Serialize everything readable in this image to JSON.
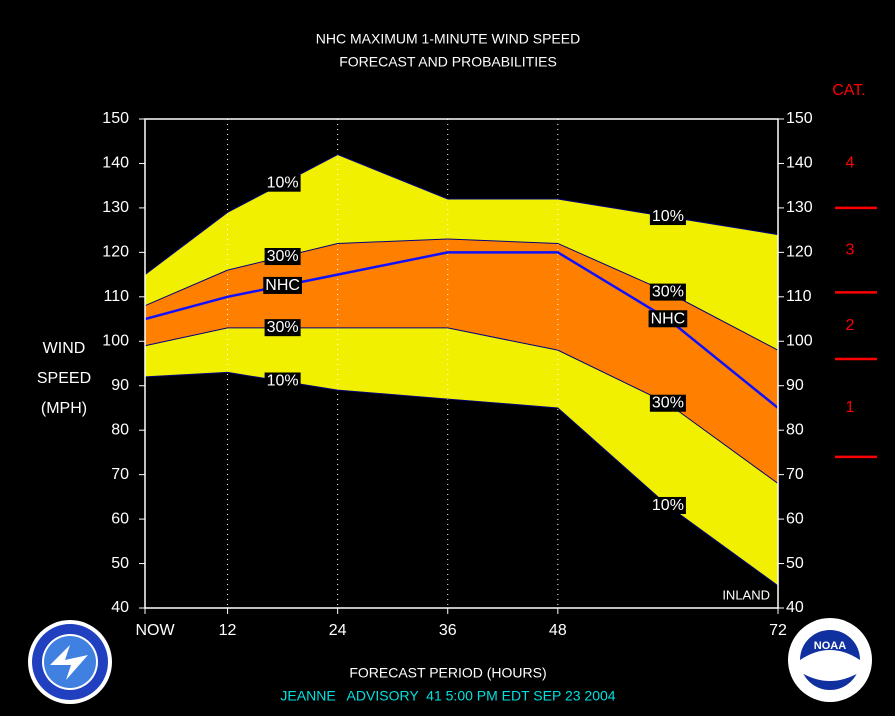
{
  "chart_data": {
    "type": "band_line",
    "title_lines": [
      "NHC MAXIMUM 1-MINUTE WIND SPEED",
      "FORECAST AND PROBABILITIES"
    ],
    "y_label_lines": [
      "WIND",
      "SPEED",
      "(MPH)"
    ],
    "x_label": "FORECAST PERIOD (HOURS)",
    "footer": "JEANNE   ADVISORY  41 5:00 PM EDT SEP 23 2004",
    "footer_color": "#00e0e0",
    "annotation": "INLAND",
    "x": [
      3,
      12,
      24,
      36,
      48,
      60,
      72
    ],
    "series": [
      {
        "name": "10%",
        "color": "#000080",
        "values": [
          115,
          129,
          142,
          132,
          132,
          128,
          124
        ]
      },
      {
        "name": "30%",
        "color": "#000080",
        "values": [
          108,
          116,
          122,
          123,
          122,
          111,
          98
        ]
      },
      {
        "name": "NHC",
        "color": "#1010ff",
        "values": [
          105,
          110,
          115,
          120,
          120,
          105,
          85
        ]
      },
      {
        "name": "30%",
        "color": "#000080",
        "values": [
          99,
          103,
          103,
          103,
          98,
          86,
          68
        ]
      },
      {
        "name": "10%",
        "color": "#000080",
        "values": [
          92,
          93,
          89,
          87,
          85,
          63,
          45
        ]
      }
    ],
    "outer_fill": "#f0f000",
    "inner_fill": "#ff8000",
    "xlim": [
      3,
      72
    ],
    "xticks": [
      {
        "value": 3,
        "label": "NOW"
      },
      12,
      24,
      36,
      48,
      72
    ],
    "ylim": [
      40,
      150
    ],
    "yticks": [
      40,
      50,
      60,
      70,
      80,
      90,
      100,
      110,
      120,
      130,
      140,
      150
    ],
    "grid": true,
    "saffir_simpson": {
      "title": "CAT.",
      "labels": [
        "4",
        "3",
        "2",
        "1"
      ],
      "thresholds": [
        130,
        111,
        96,
        74
      ],
      "color": "#ff0000"
    }
  }
}
